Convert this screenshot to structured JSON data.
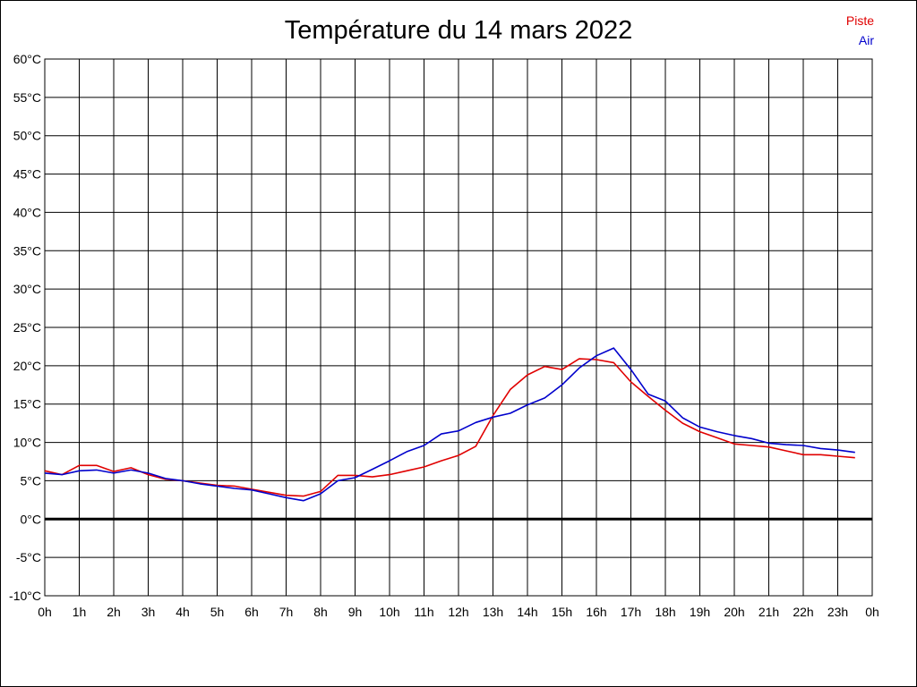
{
  "chart_data": {
    "type": "line",
    "title": "Température du 14 mars 2022",
    "y_unit": "°C",
    "ylim": [
      -10,
      60
    ],
    "y_ticks": [
      -10,
      -5,
      0,
      5,
      10,
      15,
      20,
      25,
      30,
      35,
      40,
      45,
      50,
      55,
      60
    ],
    "x_ticks": [
      "0h",
      "1h",
      "2h",
      "3h",
      "4h",
      "5h",
      "6h",
      "7h",
      "8h",
      "9h",
      "10h",
      "11h",
      "12h",
      "13h",
      "14h",
      "15h",
      "16h",
      "17h",
      "18h",
      "19h",
      "20h",
      "21h",
      "22h",
      "23h",
      "0h"
    ],
    "grid": true,
    "legend_position": "top-right",
    "baseline_value": 0,
    "x": [
      0,
      0.5,
      1,
      1.5,
      2,
      2.5,
      3,
      3.5,
      4,
      4.5,
      5,
      5.5,
      6,
      6.5,
      7,
      7.5,
      8,
      8.5,
      9,
      9.5,
      10,
      10.5,
      11,
      11.5,
      12,
      12.5,
      13,
      13.5,
      14,
      14.5,
      15,
      15.5,
      16,
      16.5,
      17,
      17.5,
      18,
      18.5,
      19,
      19.5,
      20,
      20.5,
      21,
      21.5,
      22,
      22.5,
      23,
      23.5
    ],
    "series": [
      {
        "name": "Piste",
        "color": "#e00000",
        "values": [
          6.3,
          5.8,
          7.0,
          7.0,
          6.2,
          6.7,
          5.8,
          5.2,
          5.0,
          4.7,
          4.4,
          4.3,
          3.9,
          3.5,
          3.1,
          3.0,
          3.6,
          5.7,
          5.7,
          5.5,
          5.8,
          6.3,
          6.8,
          7.6,
          8.3,
          9.5,
          13.5,
          16.9,
          18.8,
          19.9,
          19.5,
          20.9,
          20.8,
          20.4,
          17.9,
          16.0,
          14.2,
          12.5,
          11.4,
          10.6,
          9.8,
          9.6,
          9.4,
          8.9,
          8.4,
          8.4,
          8.2,
          8.0
        ]
      },
      {
        "name": "Air",
        "color": "#0000cc",
        "values": [
          6.0,
          5.8,
          6.3,
          6.4,
          6.0,
          6.4,
          6.0,
          5.3,
          5.0,
          4.6,
          4.3,
          4.0,
          3.8,
          3.3,
          2.8,
          2.4,
          3.3,
          5.0,
          5.4,
          6.5,
          7.6,
          8.8,
          9.6,
          11.1,
          11.5,
          12.6,
          13.3,
          13.8,
          14.9,
          15.8,
          17.5,
          19.7,
          21.3,
          22.3,
          19.5,
          16.3,
          15.4,
          13.2,
          12.0,
          11.4,
          10.9,
          10.5,
          9.9,
          9.7,
          9.6,
          9.2,
          9.0,
          8.7
        ]
      }
    ]
  }
}
